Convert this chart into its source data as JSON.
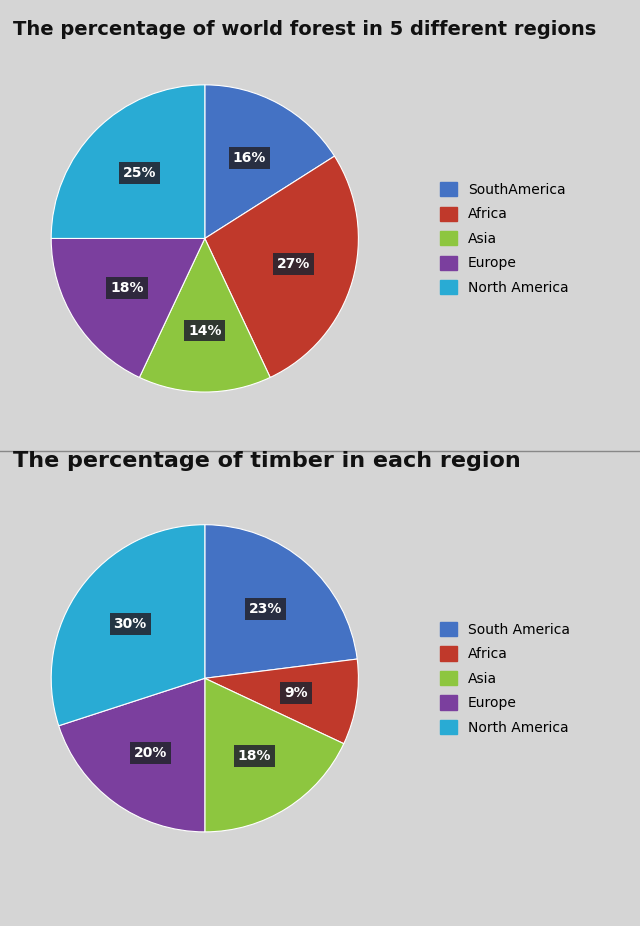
{
  "chart1": {
    "title": "The percentage of world forest in 5 different regions",
    "labels": [
      "SouthAmerica",
      "Africa",
      "Asia",
      "Europe",
      "North America"
    ],
    "values": [
      16,
      27,
      14,
      18,
      25
    ],
    "colors": [
      "#4472C4",
      "#C0392B",
      "#8DC63F",
      "#7B3F9E",
      "#29ABD4"
    ],
    "startangle": 90,
    "pct_labels": [
      "16%",
      "27%",
      "14%",
      "18%",
      "25%"
    ]
  },
  "chart2": {
    "title": "The percentage of timber in each region",
    "labels": [
      "South America",
      "Africa",
      "Asia",
      "Europe",
      "North America"
    ],
    "values": [
      23,
      9,
      18,
      20,
      30
    ],
    "colors": [
      "#4472C4",
      "#C0392B",
      "#8DC63F",
      "#7B3F9E",
      "#29ABD4"
    ],
    "startangle": 90,
    "pct_labels": [
      "23%",
      "9%",
      "18%",
      "20%",
      "30%"
    ]
  },
  "bg_color": "#D5D5D5",
  "label_bg_color": "#252530",
  "label_text_color": "#FFFFFF",
  "title1_fontsize": 14,
  "title2_fontsize": 16,
  "divider_color": "#888888",
  "label_fontsize": 10,
  "legend_fontsize": 10
}
